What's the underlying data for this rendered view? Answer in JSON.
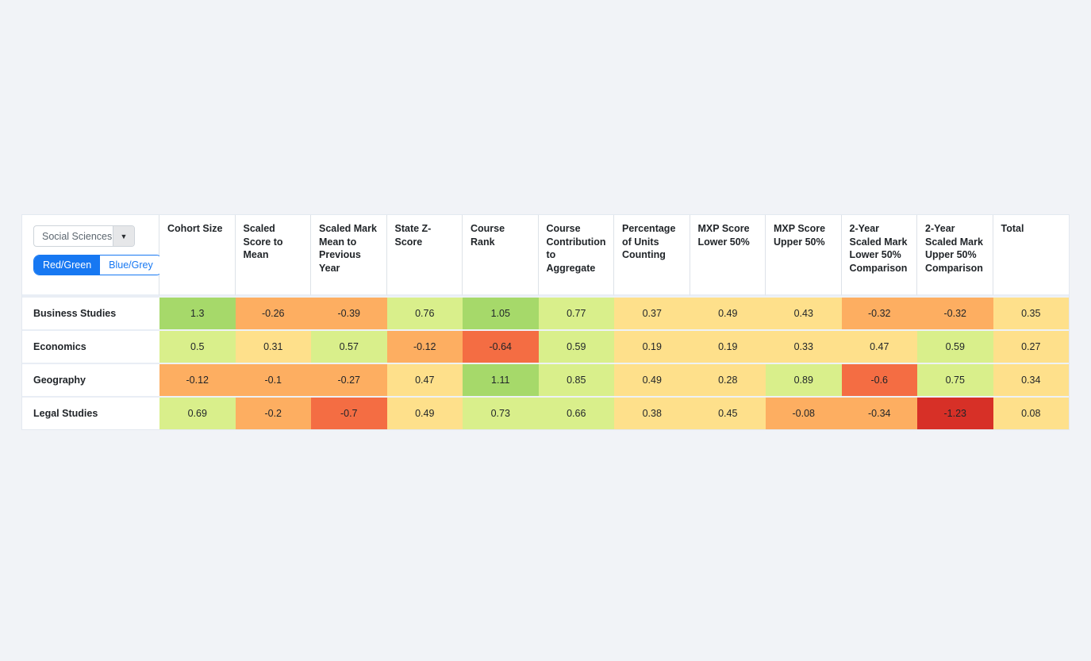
{
  "controls": {
    "category_select": {
      "value": "Social Sciences"
    },
    "palette_toggle": {
      "options": [
        "Red/Green",
        "Blue/Grey"
      ],
      "active": "Red/Green"
    }
  },
  "accent_color": "#1778f2",
  "heatmap_palette": {
    "bins": [
      {
        "gte": 1.0,
        "color": "#a6d96a"
      },
      {
        "gte": 0.5,
        "color": "#d9ef8b"
      },
      {
        "gte": 0.0,
        "color": "#fee08b"
      },
      {
        "gte": -0.49,
        "color": "#fdae61"
      },
      {
        "gte": -1.0,
        "color": "#f46d43"
      },
      {
        "gte": -9999,
        "color": "#d73027"
      }
    ]
  },
  "table": {
    "columns": [
      "Cohort Size",
      "Scaled Score to Mean",
      "Scaled Mark Mean to Previous Year",
      "State Z-Score",
      "Course Rank",
      "Course Contribution to Aggregate",
      "Percentage of Units Counting",
      "MXP Score Lower 50%",
      "MXP Score Upper 50%",
      "2-Year Scaled Mark Lower 50% Comparison",
      "2-Year Scaled Mark Upper 50% Comparison",
      "Total"
    ],
    "rows": [
      {
        "label": "Business Studies",
        "values": [
          1.3,
          -0.26,
          -0.39,
          0.76,
          1.05,
          0.77,
          0.37,
          0.49,
          0.43,
          -0.32,
          -0.32,
          0.35
        ]
      },
      {
        "label": "Economics",
        "values": [
          0.5,
          0.31,
          0.57,
          -0.12,
          -0.64,
          0.59,
          0.19,
          0.19,
          0.33,
          0.47,
          0.59,
          0.27
        ]
      },
      {
        "label": "Geography",
        "values": [
          -0.12,
          -0.1,
          -0.27,
          0.47,
          1.11,
          0.85,
          0.49,
          0.28,
          0.89,
          -0.6,
          0.75,
          0.34
        ]
      },
      {
        "label": "Legal Studies",
        "values": [
          0.69,
          -0.2,
          -0.7,
          0.49,
          0.73,
          0.66,
          0.38,
          0.45,
          -0.08,
          -0.34,
          -1.23,
          0.08
        ]
      }
    ]
  }
}
